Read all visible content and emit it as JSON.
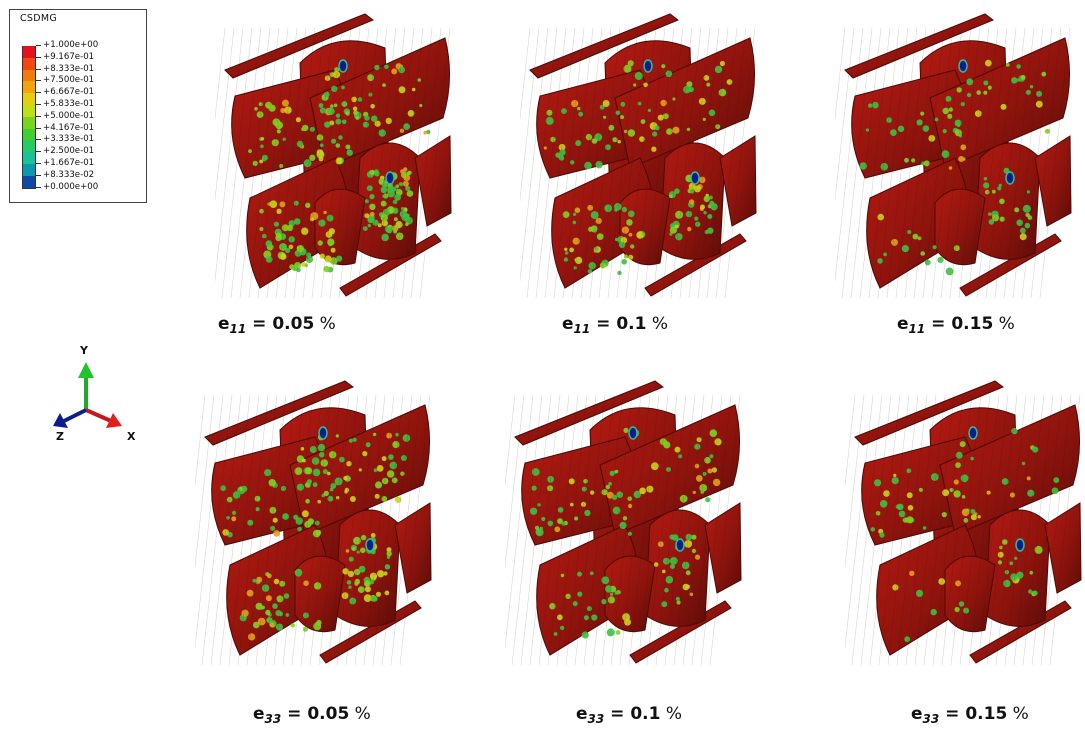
{
  "legend": {
    "title": "CSDMG",
    "entries": [
      {
        "label": "+1.000e+00",
        "color": "#e8101a"
      },
      {
        "label": "+9.167e-01",
        "color": "#f0480e"
      },
      {
        "label": "+8.333e-01",
        "color": "#f37a0c"
      },
      {
        "label": "+7.500e-01",
        "color": "#f3a40c"
      },
      {
        "label": "+6.667e-01",
        "color": "#e7cd12"
      },
      {
        "label": "+5.833e-01",
        "color": "#bfe017"
      },
      {
        "label": "+5.000e-01",
        "color": "#78d41c"
      },
      {
        "label": "+4.167e-01",
        "color": "#3fcf33"
      },
      {
        "label": "+3.333e-01",
        "color": "#25cb64"
      },
      {
        "label": "+2.500e-01",
        "color": "#19c397"
      },
      {
        "label": "+1.667e-01",
        "color": "#0e98b0"
      },
      {
        "label": "+8.333e-02",
        "color": "#0c4aa5"
      },
      {
        "label": "+0.000e+00",
        "color": "#091a7a"
      }
    ]
  },
  "triad": {
    "y_label": "Y",
    "z_label": "Z",
    "x_label": "X"
  },
  "panels": [
    {
      "strain": "e",
      "sub": "11",
      "eq": "=",
      "value": "0.05",
      "unit": "%",
      "green_level": 0.55
    },
    {
      "strain": "e",
      "sub": "11",
      "eq": "=",
      "value": "0.1",
      "unit": "%",
      "green_level": 0.35
    },
    {
      "strain": "e",
      "sub": "11",
      "eq": "=",
      "value": "0.15",
      "unit": "%",
      "green_level": 0.22
    },
    {
      "strain": "e",
      "sub": "33",
      "eq": "=",
      "value": "0.05",
      "unit": "%",
      "green_level": 0.42
    },
    {
      "strain": "e",
      "sub": "33",
      "eq": "=",
      "value": "0.1",
      "unit": "%",
      "green_level": 0.28
    },
    {
      "strain": "e",
      "sub": "33",
      "eq": "=",
      "value": "0.15",
      "unit": "%",
      "green_level": 0.18
    }
  ]
}
